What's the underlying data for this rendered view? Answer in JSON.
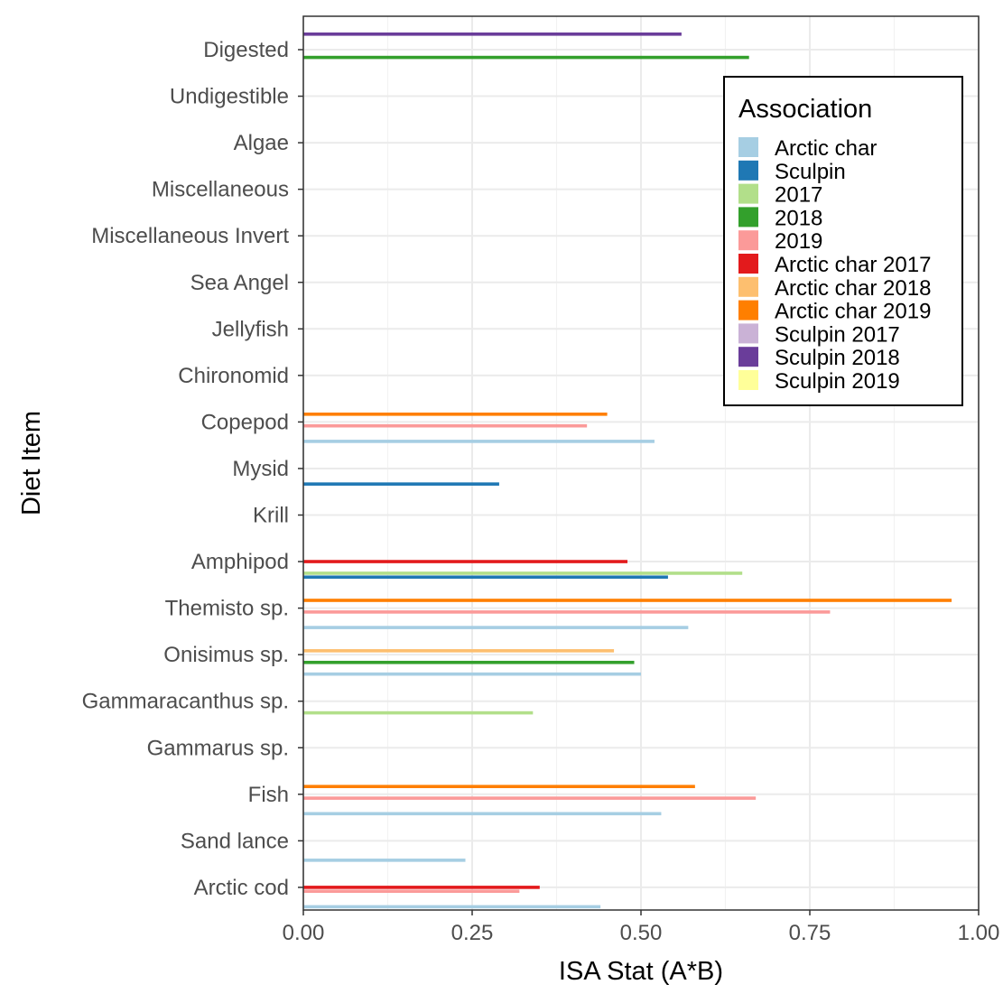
{
  "chart_data": {
    "type": "bar",
    "orientation": "horizontal",
    "xlabel": "ISA Stat (A*B)",
    "ylabel": "Diet Item",
    "xlim": [
      0,
      1
    ],
    "x_ticks": [
      "0.00",
      "0.25",
      "0.50",
      "0.75",
      "1.00"
    ],
    "x_tick_values": [
      0,
      0.25,
      0.5,
      0.75,
      1
    ],
    "grid": true,
    "legend_title": "Association",
    "legend_position": "top-right",
    "categories": [
      "Digested",
      "Undigestible",
      "Algae",
      "Miscellaneous",
      "Miscellaneous Invert",
      "Sea Angel",
      "Jellyfish",
      "Chironomid",
      "Copepod",
      "Mysid",
      "Krill",
      "Amphipod",
      "Themisto sp.",
      "Onisimus sp.",
      "Gammaracanthus sp.",
      "Gammarus sp.",
      "Fish",
      "Sand lance",
      "Arctic cod"
    ],
    "series": [
      {
        "name": "Arctic char",
        "color": "#A6CEE3",
        "values": [
          null,
          null,
          null,
          null,
          null,
          null,
          null,
          null,
          0.52,
          null,
          null,
          null,
          0.57,
          0.5,
          null,
          null,
          0.53,
          0.24,
          0.44
        ]
      },
      {
        "name": "Sculpin",
        "color": "#1F78B4",
        "values": [
          null,
          null,
          null,
          null,
          null,
          null,
          null,
          null,
          null,
          0.29,
          null,
          0.54,
          null,
          null,
          null,
          null,
          null,
          null,
          null
        ]
      },
      {
        "name": "2017",
        "color": "#B2DF8A",
        "values": [
          null,
          null,
          null,
          null,
          null,
          null,
          null,
          null,
          null,
          null,
          null,
          0.65,
          null,
          null,
          0.34,
          null,
          null,
          null,
          null
        ]
      },
      {
        "name": "2018",
        "color": "#33A02C",
        "values": [
          0.66,
          null,
          null,
          null,
          null,
          null,
          null,
          null,
          null,
          null,
          null,
          null,
          null,
          0.49,
          null,
          null,
          null,
          null,
          null
        ]
      },
      {
        "name": "2019",
        "color": "#FB9A99",
        "values": [
          null,
          null,
          null,
          null,
          null,
          null,
          null,
          null,
          0.42,
          null,
          null,
          null,
          0.78,
          null,
          null,
          null,
          0.67,
          null,
          0.32
        ]
      },
      {
        "name": "Arctic char 2017",
        "color": "#E31A1C",
        "values": [
          null,
          null,
          null,
          null,
          null,
          null,
          null,
          null,
          null,
          null,
          null,
          0.48,
          null,
          null,
          null,
          null,
          null,
          null,
          0.35
        ]
      },
      {
        "name": "Arctic char 2018",
        "color": "#FDBF6F",
        "values": [
          null,
          null,
          null,
          null,
          null,
          null,
          null,
          null,
          null,
          null,
          null,
          null,
          null,
          0.46,
          null,
          null,
          null,
          null,
          null
        ]
      },
      {
        "name": "Arctic char 2019",
        "color": "#FF7F00",
        "values": [
          null,
          null,
          null,
          null,
          null,
          null,
          null,
          null,
          0.45,
          null,
          null,
          null,
          0.96,
          null,
          null,
          null,
          0.58,
          null,
          null
        ]
      },
      {
        "name": "Sculpin 2017",
        "color": "#CAB2D6",
        "values": [
          null,
          null,
          null,
          null,
          null,
          null,
          null,
          null,
          null,
          null,
          null,
          null,
          null,
          null,
          null,
          null,
          null,
          null,
          null
        ]
      },
      {
        "name": "Sculpin 2018",
        "color": "#6A3D9A",
        "values": [
          0.56,
          null,
          null,
          null,
          null,
          null,
          null,
          null,
          null,
          null,
          null,
          null,
          null,
          null,
          null,
          null,
          null,
          null,
          null
        ]
      },
      {
        "name": "Sculpin 2019",
        "color": "#FFFF99",
        "values": [
          null,
          null,
          null,
          null,
          null,
          null,
          null,
          null,
          null,
          null,
          null,
          null,
          null,
          null,
          null,
          null,
          null,
          null,
          null
        ]
      }
    ]
  }
}
